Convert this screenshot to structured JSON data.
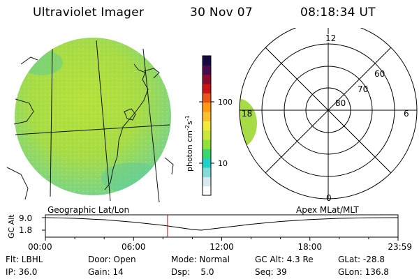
{
  "header": {
    "instrument": "Ultraviolet Imager",
    "date": "30 Nov 07",
    "time": "08:18:34 UT"
  },
  "colorbar": {
    "unit_prefix": "photon cm",
    "unit_exp1": "-2",
    "unit_s": "s",
    "unit_exp2": "-1",
    "tick_hi": "100",
    "tick_lo": "10",
    "colors": [
      "#ffffff",
      "#d8e8ec",
      "#7fdcd8",
      "#1ed2c8",
      "#3cd66a",
      "#8ee03a",
      "#c8e63c",
      "#f2ea3a",
      "#f8c030",
      "#ff9a10",
      "#e8541a",
      "#c81414",
      "#8c0a2c",
      "#4a0a50",
      "#140a40"
    ]
  },
  "polar": {
    "lat_labels": [
      "80",
      "70",
      "60"
    ],
    "mlt_labels": {
      "top": "12",
      "bottom": "0",
      "left": "18",
      "right": "6"
    }
  },
  "timeline": {
    "left_title": "Geographic Lat/Lon",
    "right_title": "Apex MLat/MLT",
    "yaxis_label": "GC Alt",
    "y_hi": "9.0",
    "y_lo": "1.8",
    "time_ticks": [
      "00:00",
      "06:00",
      "12:00",
      "18:00",
      "23:59"
    ],
    "marker_hours": 8.31,
    "curve_points": [
      [
        0,
        9.0
      ],
      [
        2,
        8.6
      ],
      [
        4,
        7.8
      ],
      [
        6,
        6.4
      ],
      [
        8,
        4.6
      ],
      [
        9,
        3.4
      ],
      [
        10,
        2.2
      ],
      [
        10.6,
        1.8
      ],
      [
        12,
        3.2
      ],
      [
        14,
        5.2
      ],
      [
        16,
        6.8
      ],
      [
        18,
        7.9
      ],
      [
        20,
        8.6
      ],
      [
        22,
        8.9
      ],
      [
        24,
        9.0
      ]
    ]
  },
  "footer": {
    "flt": "Flt: LBHL",
    "ip": "IP: 36.0",
    "door": "Door: Open",
    "gain": "Gain: 14",
    "mode": "Mode: Normal",
    "dsp": "Dsp:    5.0",
    "gcalt": "GC Alt: 4.3 Re",
    "seq": "Seq: 39",
    "glat": "GLat: -28.8",
    "glon": "GLon: 136.8"
  }
}
